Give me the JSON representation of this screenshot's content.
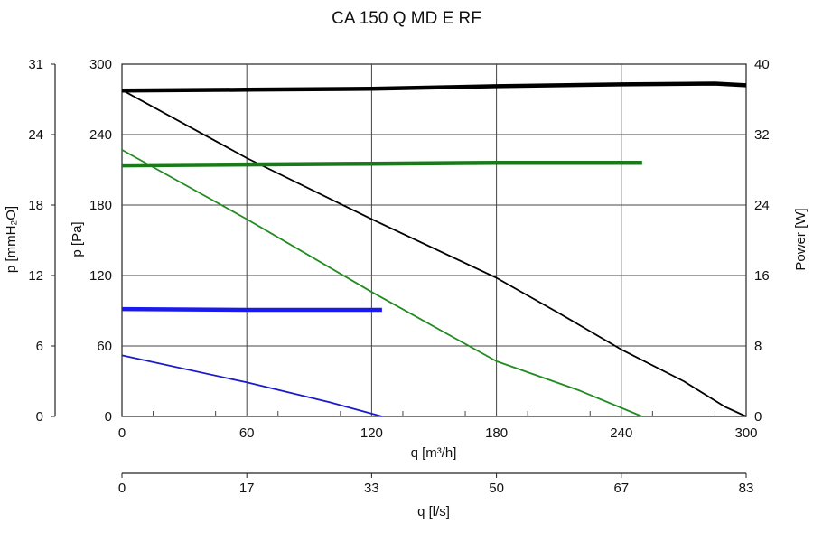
{
  "chart_data": {
    "type": "line",
    "title": "CA 150 Q MD E RF",
    "x_axis": {
      "label": "q [m³/h]",
      "range": [
        0,
        300
      ],
      "ticks": [
        "0",
        "60",
        "120",
        "180",
        "240",
        "300"
      ]
    },
    "x2_axis": {
      "label": "q [l/s]",
      "range": [
        0,
        83
      ],
      "ticks": [
        "0",
        "17",
        "33",
        "50",
        "67",
        "83"
      ]
    },
    "y_axis": {
      "label": "p [Pa]",
      "range": [
        0,
        300
      ],
      "ticks": [
        "0",
        "60",
        "120",
        "180",
        "240",
        "300"
      ]
    },
    "y_axis_outer": {
      "label": "p [mmH₂O]",
      "range": [
        0,
        31
      ],
      "ticks": [
        "0",
        "6",
        "12",
        "18",
        "24",
        "31"
      ]
    },
    "y_axis_right": {
      "label": "Power [W]",
      "range": [
        0,
        40
      ],
      "ticks": [
        "0",
        "8",
        "16",
        "24",
        "32",
        "40"
      ]
    },
    "grid": true,
    "series": [
      {
        "axis": "pressure",
        "color": "#000000",
        "width": 1.8,
        "points": [
          [
            0,
            278
          ],
          [
            60,
            220
          ],
          [
            120,
            168
          ],
          [
            180,
            118
          ],
          [
            210,
            88
          ],
          [
            240,
            57
          ],
          [
            270,
            30
          ],
          [
            290,
            8
          ],
          [
            300,
            0
          ]
        ]
      },
      {
        "axis": "power",
        "color": "#000000",
        "width": 4.5,
        "points": [
          [
            0,
            37.0
          ],
          [
            60,
            37.1
          ],
          [
            120,
            37.2
          ],
          [
            180,
            37.5
          ],
          [
            240,
            37.7
          ],
          [
            285,
            37.8
          ],
          [
            300,
            37.6
          ]
        ]
      },
      {
        "axis": "pressure",
        "color": "#228B22",
        "width": 1.8,
        "points": [
          [
            0,
            227
          ],
          [
            60,
            168
          ],
          [
            120,
            106
          ],
          [
            180,
            47
          ],
          [
            220,
            22
          ],
          [
            250,
            0
          ]
        ]
      },
      {
        "axis": "power",
        "color": "#1a7a1a",
        "width": 4.5,
        "points": [
          [
            0,
            28.5
          ],
          [
            60,
            28.6
          ],
          [
            120,
            28.7
          ],
          [
            180,
            28.8
          ],
          [
            250,
            28.8
          ]
        ]
      },
      {
        "axis": "pressure",
        "color": "#1a1acc",
        "width": 1.8,
        "points": [
          [
            0,
            52
          ],
          [
            60,
            29
          ],
          [
            100,
            12
          ],
          [
            125,
            0
          ]
        ]
      },
      {
        "axis": "power",
        "color": "#1a1aee",
        "width": 4.5,
        "points": [
          [
            0,
            12.2
          ],
          [
            60,
            12.1
          ],
          [
            125,
            12.1
          ]
        ]
      }
    ]
  }
}
